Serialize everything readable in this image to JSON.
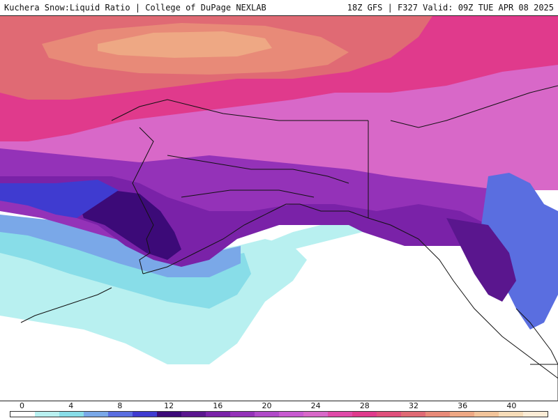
{
  "header": {
    "left_title": "Kuchera Snow:Liquid Ratio | College of DuPage NEXLAB",
    "right_title": "18Z GFS | F327 Valid: 09Z TUE APR 08 2025"
  },
  "colorbar": {
    "tick_labels": [
      "0",
      "4",
      "8",
      "12",
      "16",
      "20",
      "24",
      "28",
      "32",
      "36",
      "40"
    ],
    "tick_values": [
      0,
      4,
      8,
      12,
      16,
      20,
      24,
      28,
      32,
      36,
      40
    ],
    "range": [
      0,
      44
    ],
    "bins": [
      {
        "min": 0,
        "color": "#ffffff"
      },
      {
        "min": 2,
        "color": "#b8f0f0"
      },
      {
        "min": 4,
        "color": "#88dde8"
      },
      {
        "min": 6,
        "color": "#7aa8e8"
      },
      {
        "min": 8,
        "color": "#5a6ee0"
      },
      {
        "min": 10,
        "color": "#3f3bd0"
      },
      {
        "min": 12,
        "color": "#3c0a78"
      },
      {
        "min": 14,
        "color": "#5a168e"
      },
      {
        "min": 16,
        "color": "#7a22a8"
      },
      {
        "min": 18,
        "color": "#9432b8"
      },
      {
        "min": 20,
        "color": "#b04ac8"
      },
      {
        "min": 22,
        "color": "#c85ad0"
      },
      {
        "min": 24,
        "color": "#d868c8"
      },
      {
        "min": 26,
        "color": "#e04aa8"
      },
      {
        "min": 28,
        "color": "#e03a8c"
      },
      {
        "min": 30,
        "color": "#e0507c"
      },
      {
        "min": 32,
        "color": "#e06a74"
      },
      {
        "min": 34,
        "color": "#e88a78"
      },
      {
        "min": 36,
        "color": "#eea884"
      },
      {
        "min": 38,
        "color": "#f2c49a"
      },
      {
        "min": 40,
        "color": "#f6dcb8"
      },
      {
        "min": 42,
        "color": "#fbecd6"
      }
    ]
  }
}
